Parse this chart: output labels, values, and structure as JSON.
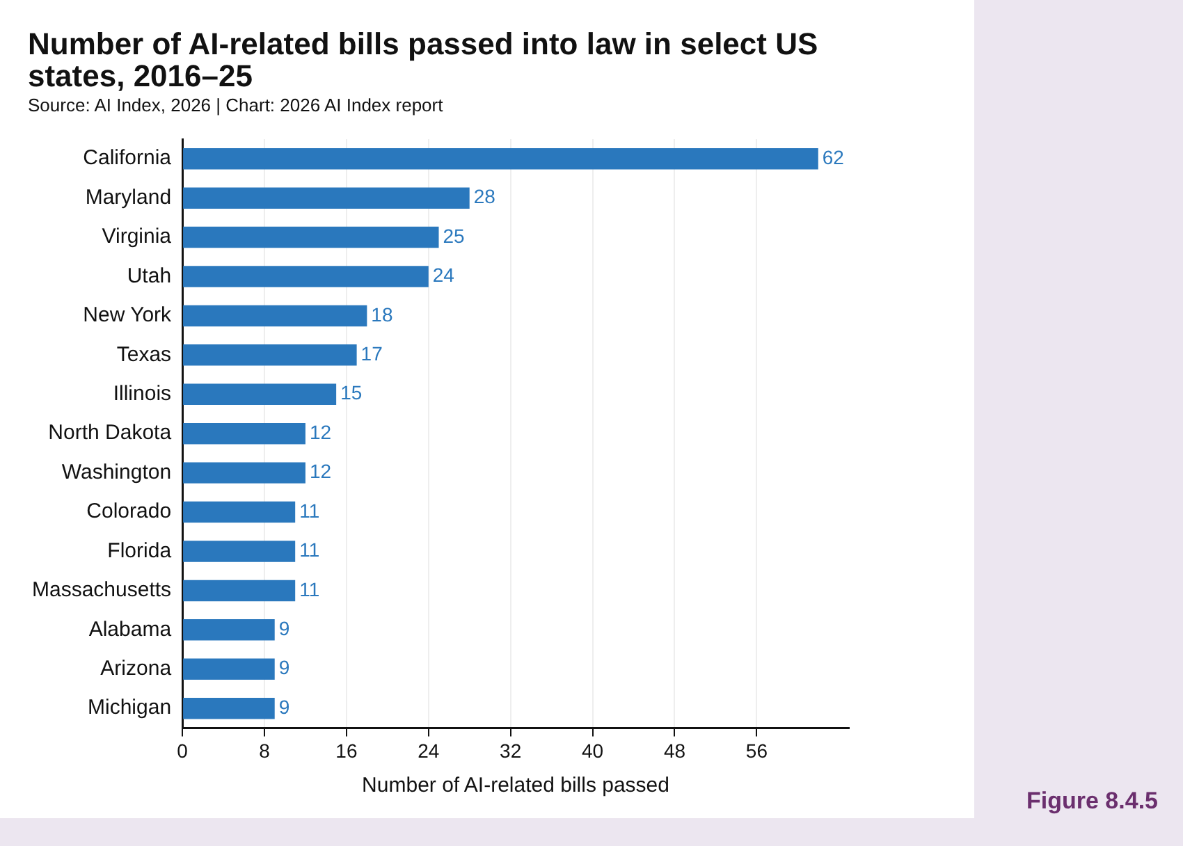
{
  "chart_data": {
    "type": "bar",
    "orientation": "horizontal",
    "title": "Number of AI-related bills passed into law in select US states, 2016–25",
    "xlabel": "Number of AI-related bills passed",
    "annotations": [
      "Source: AI Index, 2026 | Chart: 2026 AI Index report",
      "Figure 8.4.5"
    ],
    "categories": [
      "California",
      "Maryland",
      "Virginia",
      "Utah",
      "New York",
      "Texas",
      "Illinois",
      "North Dakota",
      "Washington",
      "Colorado",
      "Florida",
      "Massachusetts",
      "Alabama",
      "Arizona",
      "Michigan"
    ],
    "values": [
      62,
      28,
      25,
      24,
      18,
      17,
      15,
      12,
      12,
      11,
      11,
      11,
      9,
      9,
      9
    ],
    "color": "#2a78bd",
    "xlim": [
      0,
      65
    ],
    "xticks": [
      0,
      8,
      16,
      24,
      32,
      40,
      48,
      56
    ],
    "grid": "x",
    "data_labels": true,
    "legend": false
  }
}
